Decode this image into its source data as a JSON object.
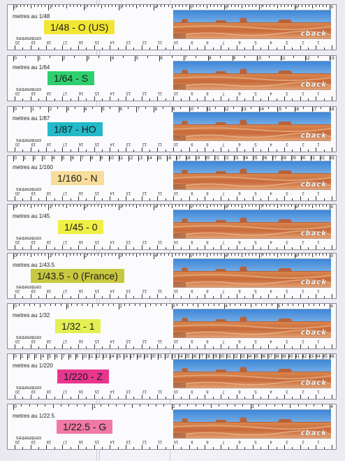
{
  "brand": "cback",
  "centimetres_label": "centimetres",
  "rulers": [
    {
      "scale_text": "metres au 1/48",
      "label": "1/48 - O (US)",
      "color": "#f2e634",
      "scale_max": 9,
      "cm": [
        20,
        19,
        18,
        17,
        16,
        15,
        14,
        13,
        12,
        11,
        10,
        9,
        8,
        7,
        6,
        5,
        4,
        3,
        2,
        1
      ]
    },
    {
      "scale_text": "metres au 1/64",
      "label": "1/64 - S",
      "color": "#2fcf6f",
      "scale_max": 13,
      "cm": [
        20,
        19,
        18,
        17,
        16,
        15,
        14,
        13,
        12,
        11,
        10,
        9,
        8,
        7,
        6,
        5,
        4,
        3,
        2,
        1
      ]
    },
    {
      "scale_text": "metres au 1/87",
      "label": "1/87 - HO",
      "color": "#22b9c9",
      "scale_max": 18,
      "cm": [
        20,
        19,
        18,
        17,
        16,
        15,
        14,
        13,
        12,
        11,
        10,
        9,
        8,
        7,
        6,
        5,
        4,
        3,
        2,
        1
      ]
    },
    {
      "scale_text": "metres au 1/160",
      "label": "1/160 - N",
      "color": "#f7dc9a",
      "scale_max": 33,
      "cm": [
        20,
        19,
        18,
        17,
        16,
        15,
        14,
        13,
        12,
        11,
        10,
        9,
        8,
        7,
        6,
        5,
        4,
        3,
        2,
        1
      ]
    },
    {
      "scale_text": "metres au 1/45",
      "label": "1/45 - 0",
      "color": "#f0ef46",
      "scale_max": 9,
      "cm": [
        20,
        19,
        18,
        17,
        16,
        15,
        14,
        13,
        12,
        11,
        10,
        9,
        8,
        7,
        6,
        5,
        4,
        3,
        2,
        1
      ]
    },
    {
      "scale_text": "metres au 1/43.5",
      "label": "1/43.5 - 0 (France)",
      "color": "#c8c840",
      "scale_max": 9,
      "cm": [
        20,
        19,
        18,
        17,
        16,
        15,
        14,
        13,
        12,
        11,
        10,
        9,
        8,
        7,
        6,
        5,
        4,
        3,
        2,
        1
      ]
    },
    {
      "scale_text": "metres au 1/32",
      "label": "1/32 - 1",
      "color": "#e3ef52",
      "scale_max": 6,
      "cm": [
        20,
        19,
        18,
        17,
        16,
        15,
        14,
        13,
        12,
        11,
        10,
        9,
        8,
        7,
        6,
        5,
        4,
        3,
        2,
        1
      ]
    },
    {
      "scale_text": "metres au 1/220",
      "label": "1/220 - Z",
      "color": "#e8368f",
      "scale_max": 46,
      "cm": [
        20,
        19,
        18,
        17,
        16,
        15,
        14,
        13,
        12,
        11,
        10,
        9,
        8,
        7,
        6,
        5,
        4,
        3,
        2,
        1
      ]
    },
    {
      "scale_text": "metres au 1/22.5",
      "label": "1/22.5 - G",
      "color": "#f07aa4",
      "scale_max": 4,
      "cm": [
        20,
        19,
        18,
        17,
        16,
        15,
        14,
        13,
        12,
        11,
        10,
        9,
        8,
        7,
        6,
        5,
        4,
        3,
        2,
        1
      ]
    }
  ]
}
